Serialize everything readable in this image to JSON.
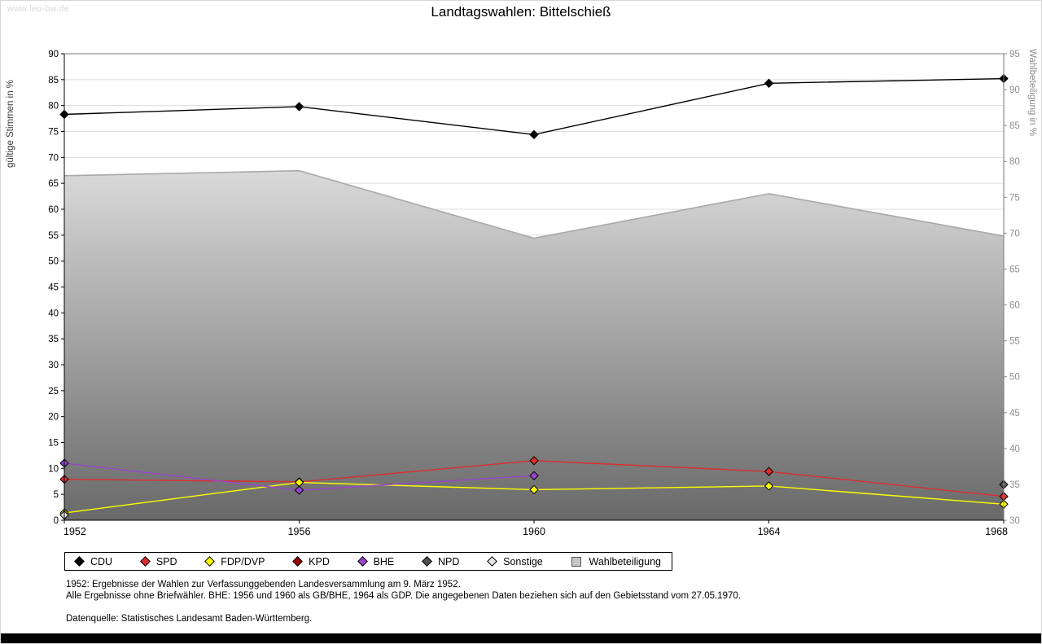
{
  "watermark": "www.leo-bw.de",
  "header": {
    "title": "Landtagswahlen: Bittelschieß"
  },
  "chart_data": {
    "type": "line",
    "title": "Landtagswahlen: Bittelschieß",
    "x_labels": [
      "1952",
      "1956",
      "1960",
      "1964",
      "1968"
    ],
    "left_axis": {
      "label": "gültige Stimmen in %",
      "min": 0,
      "max": 90,
      "step": 5
    },
    "right_axis": {
      "label": "Wahlbeteiligung in %",
      "min": 30,
      "max": 95,
      "step": 5
    },
    "grid": true,
    "legend_position": "bottom",
    "series": [
      {
        "name": "CDU",
        "color": "#000000",
        "axis": "left",
        "marker": "diamond",
        "values": [
          78.3,
          79.8,
          74.4,
          84.3,
          85.2
        ]
      },
      {
        "name": "SPD",
        "color": "#dd2c2c",
        "axis": "left",
        "marker": "diamond",
        "values": [
          7.9,
          7.4,
          11.5,
          9.4,
          4.6
        ]
      },
      {
        "name": "FDP/DVP",
        "color": "#ffff00",
        "axis": "left",
        "marker": "diamond",
        "values": [
          1.4,
          7.3,
          5.9,
          6.6,
          3.1
        ]
      },
      {
        "name": "KPD",
        "color": "#990000",
        "axis": "left",
        "marker": "diamond",
        "values": [
          null,
          null,
          null,
          null,
          null
        ]
      },
      {
        "name": "BHE",
        "color": "#9944cc",
        "axis": "left",
        "marker": "diamond",
        "values": [
          11.0,
          5.8,
          8.6,
          null,
          null
        ]
      },
      {
        "name": "NPD",
        "color": "#4f4f4f",
        "axis": "left",
        "marker": "diamond",
        "values": [
          null,
          null,
          null,
          null,
          6.9
        ]
      },
      {
        "name": "Sonstige",
        "color": "#e4e4e4",
        "axis": "left",
        "marker": "diamond",
        "values": [
          1.0,
          null,
          null,
          null,
          null
        ]
      }
    ],
    "area_series": {
      "name": "Wahlbeteiligung",
      "axis": "right",
      "fill_top": "#d9d9d9",
      "fill_bottom": "#696969",
      "line_color": "#a8a8a8",
      "values": [
        78.0,
        78.7,
        69.3,
        75.5,
        69.6
      ]
    }
  },
  "footnotes": {
    "line1": "1952: Ergebnisse der Wahlen zur Verfassunggebenden Landesversammlung am 9. März 1952.",
    "line2": "Alle Ergebnisse ohne Briefwähler. BHE: 1956 und 1960 als GB/BHE, 1964 als GDP. Die angegebenen Daten beziehen sich auf den Gebietsstand vom 27.05.1970.",
    "source": "Datenquelle: Statistisches Landesamt Baden-Württemberg."
  }
}
